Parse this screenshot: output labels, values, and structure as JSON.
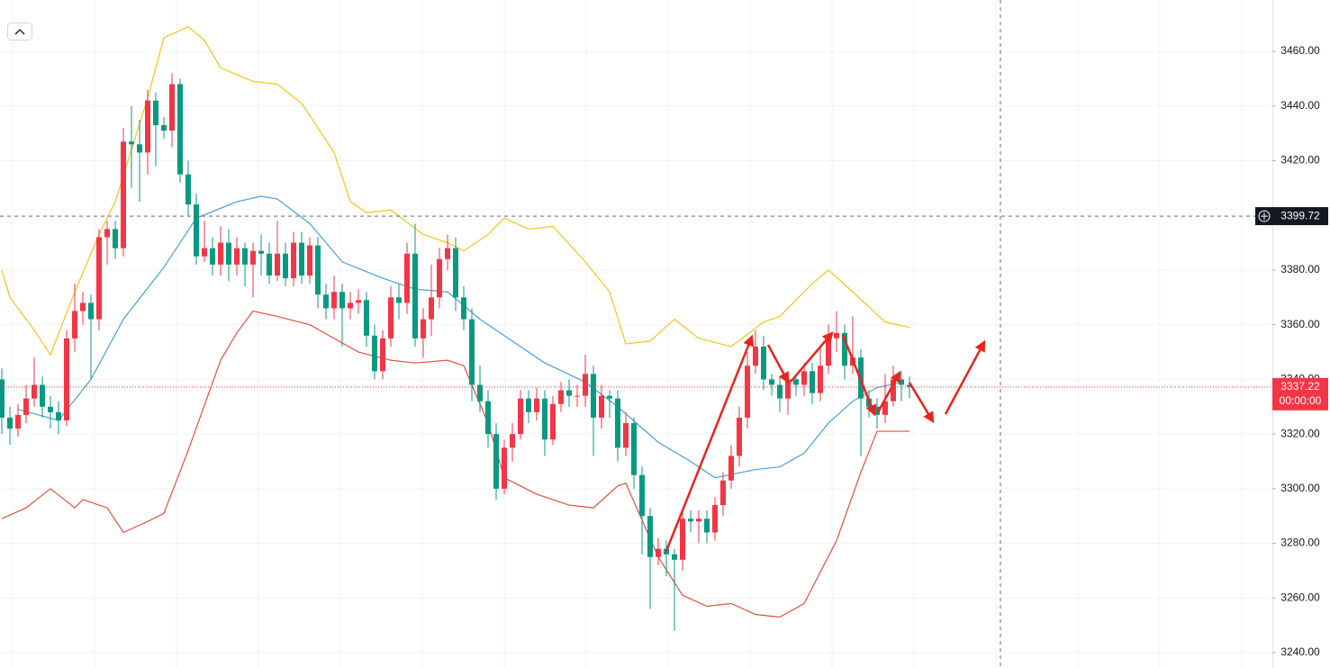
{
  "chart_data": {
    "type": "candlestick",
    "ylim": [
      3234.4,
      3478.8
    ],
    "yticks": [
      {
        "value": 3240,
        "label": "3240.00"
      },
      {
        "value": 3260,
        "label": "3260.00"
      },
      {
        "value": 3280,
        "label": "3280.00"
      },
      {
        "value": 3300,
        "label": "3300.00"
      },
      {
        "value": 3320,
        "label": "3320.00"
      },
      {
        "value": 3340,
        "label": "3340.00"
      },
      {
        "value": 3360,
        "label": "3360.00"
      },
      {
        "value": 3380,
        "label": "3380.00"
      },
      {
        "value": 3400,
        "label": "3400.00"
      },
      {
        "value": 3420,
        "label": "3420.00"
      },
      {
        "value": 3440,
        "label": "3440.00"
      },
      {
        "value": 3460,
        "label": "3460.00"
      }
    ],
    "grid": true,
    "up_color": "#f23645",
    "down_color": "#089981",
    "open": [
      3340,
      3326,
      3322,
      3327,
      3333,
      3338,
      3330,
      3328,
      3325,
      3355,
      3365,
      3368,
      3362,
      3392,
      3395,
      3388,
      3427,
      3426,
      3423,
      3442,
      3433,
      3431,
      3448,
      3415,
      3404,
      3385,
      3388,
      3382,
      3390,
      3382,
      3388,
      3382,
      3387,
      3386,
      3378,
      3386,
      3377,
      3390,
      3378,
      3389,
      3371,
      3366,
      3372,
      3366,
      3368,
      3369,
      3356,
      3343,
      3355,
      3370,
      3368,
      3386,
      3355,
      3362,
      3370,
      3384,
      3388,
      3370,
      3362,
      3338,
      3332,
      3320,
      3300,
      3315,
      3320,
      3333,
      3328,
      3333,
      3318,
      3331,
      3336,
      3334,
      3334,
      3342,
      3326,
      3334,
      3333,
      3315,
      3324,
      3305,
      3290,
      3275,
      3278,
      3276,
      3274,
      3289,
      3288,
      3289,
      3284,
      3294,
      3303,
      3312,
      3326,
      3345,
      3352,
      3340,
      3338,
      3333,
      3340,
      3338,
      3343,
      3335,
      3345,
      3355,
      3357,
      3345,
      3348,
      3333,
      3330,
      3327,
      3332,
      3340,
      3338
    ],
    "high": [
      3344,
      3330,
      3331,
      3338,
      3348,
      3341,
      3334,
      3332,
      3358,
      3375,
      3372,
      3371,
      3395,
      3398,
      3398,
      3432,
      3440,
      3435,
      3446,
      3445,
      3436,
      3452,
      3450,
      3420,
      3408,
      3398,
      3392,
      3396,
      3395,
      3392,
      3390,
      3390,
      3393,
      3390,
      3398,
      3390,
      3394,
      3394,
      3392,
      3392,
      3375,
      3378,
      3375,
      3372,
      3373,
      3372,
      3360,
      3358,
      3374,
      3375,
      3390,
      3397,
      3366,
      3382,
      3388,
      3393,
      3392,
      3374,
      3366,
      3345,
      3336,
      3324,
      3318,
      3324,
      3336,
      3336,
      3337,
      3336,
      3334,
      3339,
      3340,
      3338,
      3349,
      3345,
      3338,
      3336,
      3336,
      3328,
      3326,
      3308,
      3293,
      3282,
      3281,
      3278,
      3292,
      3292,
      3292,
      3292,
      3297,
      3306,
      3316,
      3330,
      3350,
      3358,
      3356,
      3342,
      3341,
      3343,
      3342,
      3346,
      3346,
      3352,
      3360,
      3365,
      3360,
      3363,
      3351,
      3336,
      3333,
      3342,
      3345,
      3343,
      3341
    ],
    "low": [
      3320,
      3316,
      3319,
      3324,
      3330,
      3326,
      3322,
      3320,
      3323,
      3350,
      3360,
      3340,
      3358,
      3382,
      3384,
      3385,
      3410,
      3405,
      3415,
      3418,
      3428,
      3425,
      3412,
      3400,
      3382,
      3383,
      3378,
      3378,
      3376,
      3378,
      3374,
      3370,
      3378,
      3375,
      3376,
      3374,
      3374,
      3375,
      3375,
      3366,
      3362,
      3362,
      3352,
      3362,
      3364,
      3352,
      3340,
      3340,
      3352,
      3362,
      3364,
      3352,
      3348,
      3356,
      3366,
      3380,
      3365,
      3358,
      3332,
      3328,
      3315,
      3296,
      3298,
      3310,
      3318,
      3324,
      3325,
      3312,
      3316,
      3328,
      3330,
      3330,
      3330,
      3312,
      3322,
      3326,
      3310,
      3312,
      3300,
      3276,
      3256,
      3272,
      3268,
      3248,
      3270,
      3284,
      3280,
      3280,
      3281,
      3290,
      3300,
      3308,
      3322,
      3342,
      3336,
      3334,
      3328,
      3327,
      3334,
      3334,
      3331,
      3332,
      3342,
      3350,
      3340,
      3342,
      3312,
      3326,
      3322,
      3324,
      3330,
      3332,
      3333
    ],
    "close": [
      3326,
      3322,
      3327,
      3333,
      3338,
      3330,
      3328,
      3325,
      3355,
      3365,
      3368,
      3362,
      3392,
      3395,
      3388,
      3427,
      3426,
      3423,
      3442,
      3433,
      3431,
      3448,
      3415,
      3404,
      3385,
      3388,
      3382,
      3390,
      3382,
      3388,
      3382,
      3387,
      3386,
      3378,
      3386,
      3377,
      3390,
      3378,
      3389,
      3371,
      3366,
      3372,
      3366,
      3368,
      3369,
      3356,
      3343,
      3355,
      3370,
      3368,
      3386,
      3355,
      3362,
      3370,
      3384,
      3388,
      3370,
      3362,
      3338,
      3332,
      3320,
      3300,
      3315,
      3320,
      3333,
      3328,
      3333,
      3318,
      3331,
      3336,
      3334,
      3334,
      3342,
      3326,
      3334,
      3333,
      3315,
      3324,
      3305,
      3290,
      3275,
      3278,
      3276,
      3274,
      3289,
      3288,
      3289,
      3284,
      3294,
      3303,
      3312,
      3326,
      3345,
      3352,
      3340,
      3338,
      3333,
      3340,
      3338,
      3343,
      3335,
      3345,
      3355,
      3357,
      3345,
      3348,
      3333,
      3330,
      3327,
      3332,
      3340,
      3338,
      3337.22
    ],
    "bands": [
      {
        "color": "#f5c518",
        "x": [
          0,
          1,
          4,
          6,
          9,
          12,
          14,
          18,
          20,
          23,
          25,
          27,
          31,
          34,
          37,
          41,
          43,
          45,
          48,
          52,
          55,
          57,
          60,
          62,
          65,
          68,
          72,
          75,
          77,
          80,
          83,
          86,
          90,
          94,
          96,
          100,
          102,
          105,
          109,
          112
        ],
        "values": [
          3380,
          3370,
          3358,
          3349,
          3372,
          3393,
          3405,
          3443,
          3465,
          3469,
          3464,
          3454,
          3449,
          3448,
          3441,
          3423,
          3405,
          3401,
          3402,
          3393,
          3390,
          3387,
          3393,
          3399,
          3395,
          3396,
          3383,
          3372,
          3353,
          3354,
          3362,
          3355,
          3352,
          3361,
          3363,
          3375,
          3380,
          3372,
          3361,
          3359
        ]
      },
      {
        "color": "#4a9fd8",
        "x": [
          2,
          7,
          11,
          15,
          20,
          24,
          29,
          32,
          34,
          38,
          42,
          47,
          51,
          55,
          59,
          63,
          67,
          72,
          76,
          81,
          85,
          88,
          93,
          96,
          99,
          102,
          105,
          108,
          111
        ],
        "values": [
          3329,
          3325,
          3340,
          3362,
          3381,
          3399,
          3405,
          3407,
          3406,
          3397,
          3383,
          3377,
          3373,
          3372,
          3362,
          3354,
          3346,
          3339,
          3330,
          3317,
          3310,
          3304,
          3307,
          3308,
          3313,
          3324,
          3332,
          3337,
          3339
        ]
      },
      {
        "color": "#e0513f",
        "x": [
          0,
          3,
          6,
          9,
          10,
          13,
          15,
          18,
          20,
          23,
          27,
          29,
          31,
          34,
          38,
          41,
          44,
          48,
          51,
          55,
          57,
          60,
          62,
          66,
          70,
          73,
          76,
          77,
          81,
          84,
          87,
          90,
          93,
          96,
          99,
          103,
          106,
          108,
          112
        ],
        "values": [
          3289,
          3293,
          3300,
          3293,
          3296,
          3293,
          3284,
          3288,
          3291,
          3314,
          3347,
          3357,
          3365,
          3363,
          3360,
          3355,
          3350,
          3347,
          3346,
          3347,
          3345,
          3324,
          3304,
          3298,
          3294,
          3293,
          3301,
          3302,
          3275,
          3261,
          3257,
          3258,
          3254,
          3253,
          3258,
          3281,
          3306,
          3321,
          3321
        ]
      }
    ],
    "last_price": {
      "value": 3337.22,
      "label": "3337.22"
    },
    "countdown": "00:00:00",
    "crosshair": {
      "value": 3399.72,
      "label": "3399.72"
    }
  }
}
